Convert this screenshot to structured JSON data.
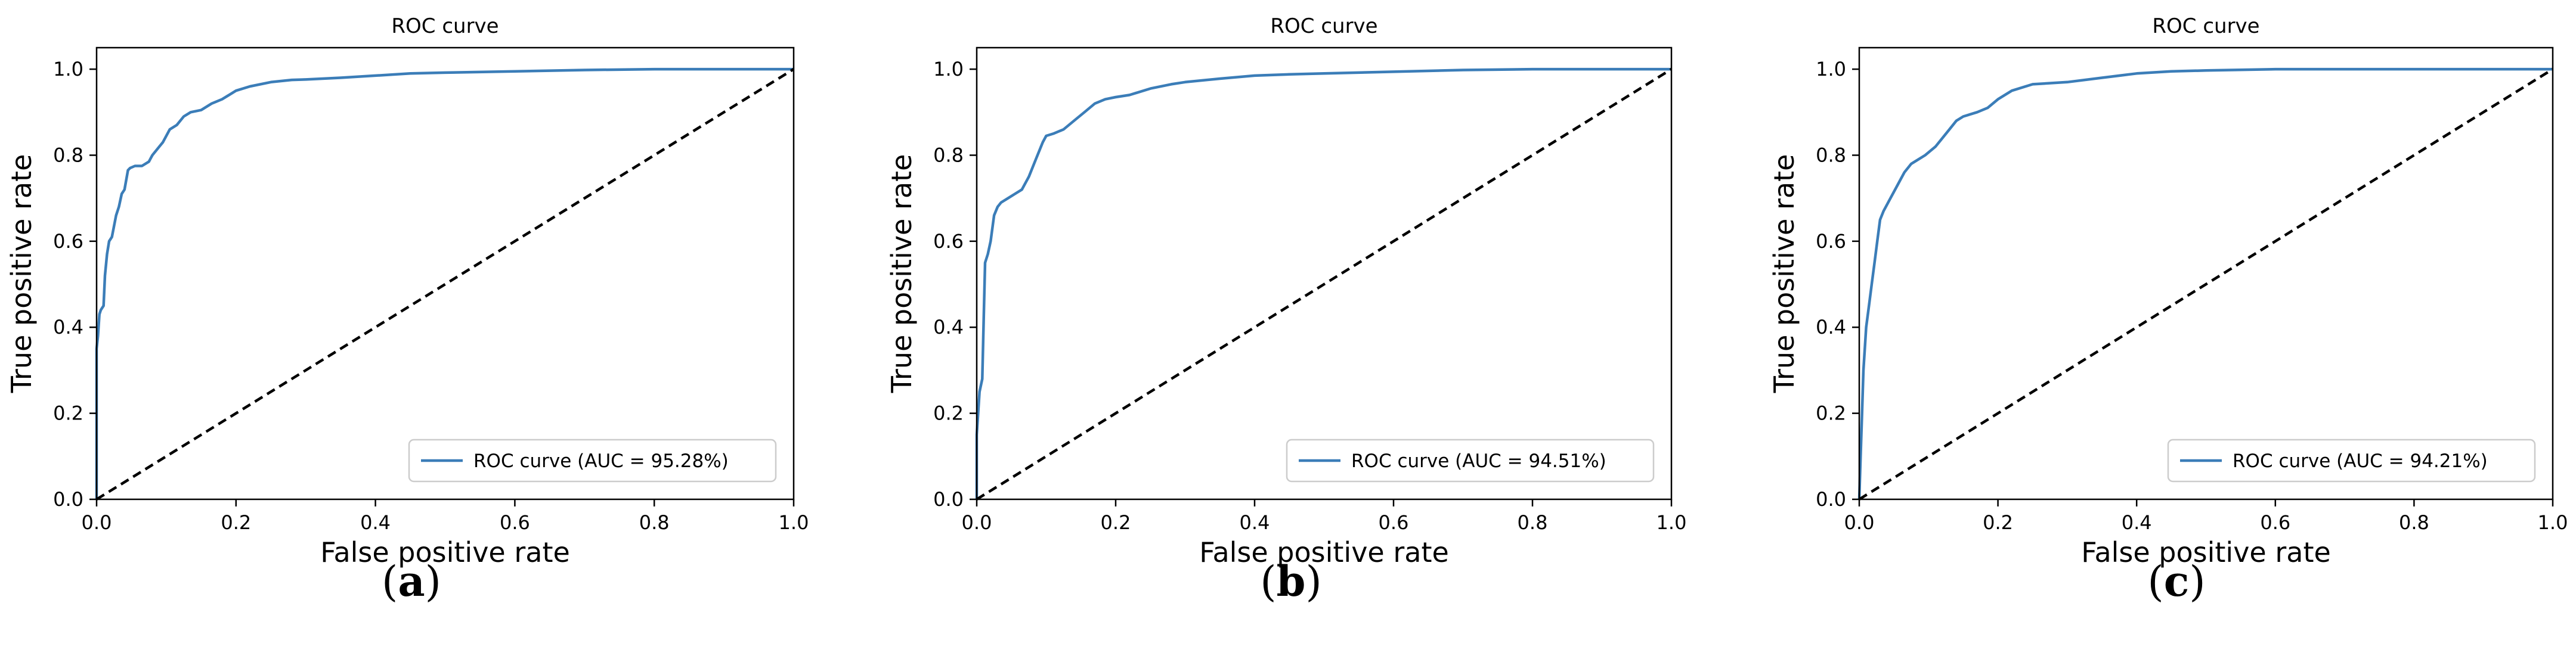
{
  "colors": {
    "roc_line": "#3b7db8",
    "diagonal": "#000000",
    "axis": "#000000",
    "legend_border": "#cccccc"
  },
  "chart_data": [
    {
      "type": "line",
      "panel": "a",
      "caption_letter": "a",
      "title": "ROC curve",
      "xlabel": "False positive rate",
      "ylabel": "True positive rate",
      "xlim": [
        0,
        1
      ],
      "ylim": [
        0,
        1.05
      ],
      "xticks": [
        0,
        0.2,
        0.4,
        0.6,
        0.8,
        1.0
      ],
      "xtick_labels": [
        "0.0",
        "0.2",
        "0.4",
        "0.6",
        "0.8",
        "1.0"
      ],
      "yticks": [
        0,
        0.2,
        0.4,
        0.6,
        0.8,
        1.0
      ],
      "ytick_labels": [
        "0.0",
        "0.2",
        "0.4",
        "0.6",
        "0.8",
        "1.0"
      ],
      "legend_position": "lower-right",
      "series": [
        {
          "name": "ROC curve (AUC = 95.28%)",
          "style": "solid",
          "x": [
            0,
            0,
            0.002,
            0.004,
            0.006,
            0.01,
            0.012,
            0.015,
            0.018,
            0.022,
            0.028,
            0.032,
            0.036,
            0.04,
            0.045,
            0.048,
            0.055,
            0.065,
            0.075,
            0.08,
            0.09,
            0.095,
            0.105,
            0.115,
            0.125,
            0.135,
            0.15,
            0.165,
            0.18,
            0.19,
            0.2,
            0.22,
            0.25,
            0.28,
            0.3,
            0.35,
            0.4,
            0.45,
            0.5,
            0.6,
            0.7,
            0.8,
            0.9,
            1.0
          ],
          "y": [
            0,
            0.35,
            0.38,
            0.43,
            0.44,
            0.45,
            0.52,
            0.57,
            0.6,
            0.61,
            0.66,
            0.68,
            0.71,
            0.72,
            0.765,
            0.77,
            0.775,
            0.775,
            0.785,
            0.8,
            0.82,
            0.83,
            0.86,
            0.87,
            0.89,
            0.9,
            0.905,
            0.92,
            0.93,
            0.94,
            0.95,
            0.96,
            0.97,
            0.975,
            0.976,
            0.98,
            0.985,
            0.99,
            0.992,
            0.995,
            0.998,
            1.0,
            1.0,
            1.0
          ]
        },
        {
          "name": "",
          "style": "dashed",
          "x": [
            0,
            1
          ],
          "y": [
            0,
            1
          ]
        }
      ]
    },
    {
      "type": "line",
      "panel": "b",
      "caption_letter": "b",
      "title": "ROC curve",
      "xlabel": "False positive rate",
      "ylabel": "True positive rate",
      "xlim": [
        0,
        1
      ],
      "ylim": [
        0,
        1.05
      ],
      "xticks": [
        0,
        0.2,
        0.4,
        0.6,
        0.8,
        1.0
      ],
      "xtick_labels": [
        "0.0",
        "0.2",
        "0.4",
        "0.6",
        "0.8",
        "1.0"
      ],
      "yticks": [
        0,
        0.2,
        0.4,
        0.6,
        0.8,
        1.0
      ],
      "ytick_labels": [
        "0.0",
        "0.2",
        "0.4",
        "0.6",
        "0.8",
        "1.0"
      ],
      "legend_position": "lower-right",
      "series": [
        {
          "name": "ROC curve (AUC = 94.51%)",
          "style": "solid",
          "x": [
            0,
            0,
            0.004,
            0.008,
            0.01,
            0.012,
            0.016,
            0.02,
            0.025,
            0.03,
            0.035,
            0.045,
            0.055,
            0.065,
            0.075,
            0.085,
            0.095,
            0.1,
            0.11,
            0.125,
            0.14,
            0.155,
            0.17,
            0.185,
            0.2,
            0.22,
            0.25,
            0.28,
            0.3,
            0.35,
            0.4,
            0.45,
            0.5,
            0.6,
            0.7,
            0.8,
            0.9,
            1.0
          ],
          "y": [
            0,
            0.15,
            0.25,
            0.28,
            0.42,
            0.55,
            0.57,
            0.6,
            0.66,
            0.68,
            0.69,
            0.7,
            0.71,
            0.72,
            0.75,
            0.79,
            0.83,
            0.845,
            0.85,
            0.86,
            0.88,
            0.9,
            0.92,
            0.93,
            0.935,
            0.94,
            0.955,
            0.965,
            0.97,
            0.978,
            0.985,
            0.988,
            0.99,
            0.994,
            0.998,
            1.0,
            1.0,
            1.0
          ]
        },
        {
          "name": "",
          "style": "dashed",
          "x": [
            0,
            1
          ],
          "y": [
            0,
            1
          ]
        }
      ]
    },
    {
      "type": "line",
      "panel": "c",
      "caption_letter": "c",
      "title": "ROC curve",
      "xlabel": "False positive rate",
      "ylabel": "True positive rate",
      "xlim": [
        0,
        1
      ],
      "ylim": [
        0,
        1.05
      ],
      "xticks": [
        0,
        0.2,
        0.4,
        0.6,
        0.8,
        1.0
      ],
      "xtick_labels": [
        "0.0",
        "0.2",
        "0.4",
        "0.6",
        "0.8",
        "1.0"
      ],
      "yticks": [
        0,
        0.2,
        0.4,
        0.6,
        0.8,
        1.0
      ],
      "ytick_labels": [
        "0.0",
        "0.2",
        "0.4",
        "0.6",
        "0.8",
        "1.0"
      ],
      "legend_position": "lower-right",
      "series": [
        {
          "name": "ROC curve (AUC = 94.21%)",
          "style": "solid",
          "x": [
            0,
            0.002,
            0.004,
            0.006,
            0.01,
            0.014,
            0.018,
            0.022,
            0.026,
            0.03,
            0.035,
            0.045,
            0.055,
            0.065,
            0.075,
            0.085,
            0.095,
            0.11,
            0.12,
            0.13,
            0.14,
            0.15,
            0.17,
            0.185,
            0.2,
            0.22,
            0.25,
            0.3,
            0.35,
            0.4,
            0.45,
            0.5,
            0.6,
            0.7,
            0.8,
            0.9,
            1.0
          ],
          "y": [
            0,
            0.1,
            0.2,
            0.3,
            0.4,
            0.45,
            0.5,
            0.55,
            0.6,
            0.65,
            0.67,
            0.7,
            0.73,
            0.76,
            0.78,
            0.79,
            0.8,
            0.82,
            0.84,
            0.86,
            0.88,
            0.89,
            0.9,
            0.91,
            0.93,
            0.95,
            0.965,
            0.97,
            0.98,
            0.99,
            0.995,
            0.997,
            1.0,
            1.0,
            1.0,
            1.0,
            1.0
          ]
        },
        {
          "name": "",
          "style": "dashed",
          "x": [
            0,
            1
          ],
          "y": [
            0,
            1
          ]
        }
      ]
    }
  ]
}
